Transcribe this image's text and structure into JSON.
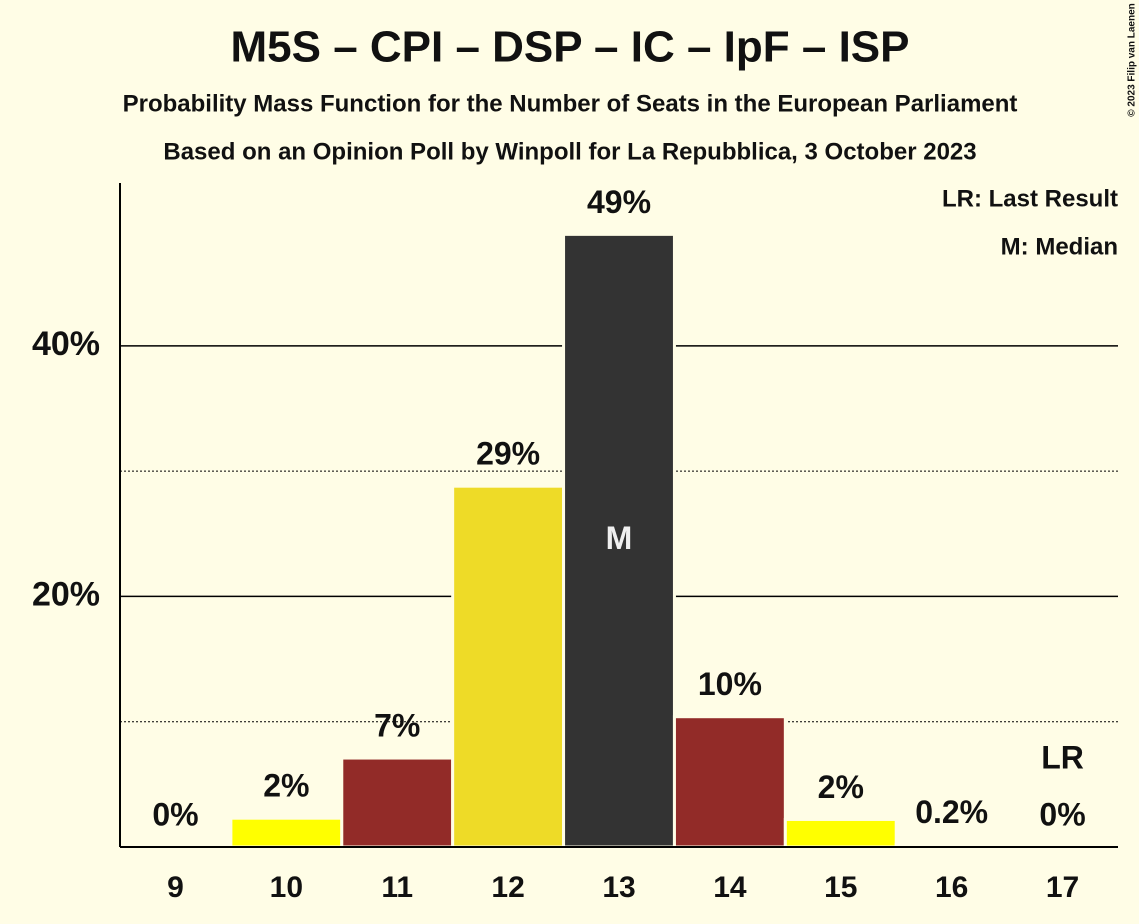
{
  "chart_data": {
    "type": "bar",
    "title": "M5S – CPI – DSP – IC – IpF – ISP",
    "subtitle": "Probability Mass Function for the Number of Seats in the European Parliament",
    "subtitle2": "Based on an Opinion Poll by Winpoll for La Repubblica, 3 October 2023",
    "categories": [
      "9",
      "10",
      "11",
      "12",
      "13",
      "14",
      "15",
      "16",
      "17"
    ],
    "values": [
      0,
      2.3,
      7.1,
      28.8,
      48.9,
      10.4,
      2.2,
      0.2,
      0
    ],
    "value_labels": [
      "0%",
      "2%",
      "7%",
      "29%",
      "49%",
      "10%",
      "2%",
      "0.2%",
      "0%"
    ],
    "colors": [
      "#ffff00",
      "#ffff00",
      "#922b28",
      "#eedb27",
      "#333333",
      "#922b28",
      "#ffff00",
      "#922b28",
      "#eedb27"
    ],
    "ylim": [
      0,
      53
    ],
    "yticks": [
      {
        "value": 20,
        "label": "20%"
      },
      {
        "value": 40,
        "label": "40%"
      }
    ],
    "minor_yticks": [
      10,
      30
    ],
    "grid": true,
    "median_index": 4,
    "median_label": "M",
    "last_result_index": 8,
    "last_result_label": "LR",
    "legend": [
      "LR: Last Result",
      "M: Median"
    ],
    "copyright": "© 2023 Filip van Laenen"
  }
}
